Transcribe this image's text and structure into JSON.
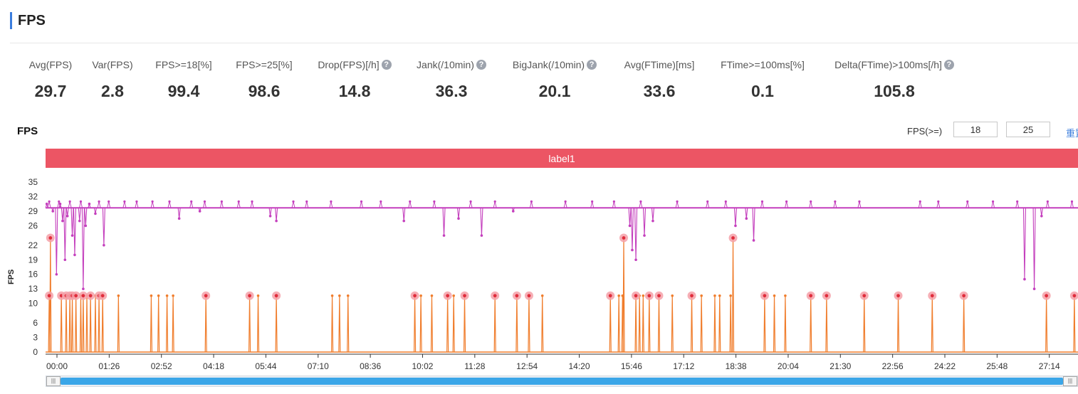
{
  "header": {
    "title": "FPS"
  },
  "metrics": [
    {
      "label": "Avg(FPS)",
      "value": "29.7",
      "help": false
    },
    {
      "label": "Var(FPS)",
      "value": "2.8",
      "help": false
    },
    {
      "label": "FPS>=18[%]",
      "value": "99.4",
      "help": false
    },
    {
      "label": "FPS>=25[%]",
      "value": "98.6",
      "help": false
    },
    {
      "label": "Drop(FPS)[/h]",
      "value": "14.8",
      "help": true
    },
    {
      "label": "Jank(/10min)",
      "value": "36.3",
      "help": true
    },
    {
      "label": "BigJank(/10min)",
      "value": "20.1",
      "help": true
    },
    {
      "label": "Avg(FTime)[ms]",
      "value": "33.6",
      "help": false
    },
    {
      "label": "FTime>=100ms[%]",
      "value": "0.1",
      "help": false
    },
    {
      "label": "Delta(FTime)>100ms[/h]",
      "value": "105.8",
      "help": true
    }
  ],
  "chart_panel": {
    "title": "FPS",
    "threshold_label": "FPS(>=)",
    "threshold_low": "18",
    "threshold_high": "25",
    "reset_label": "重置",
    "band_label": "label1"
  },
  "chart_data": {
    "type": "line",
    "title": "FPS",
    "xlabel": "",
    "ylabel": "FPS",
    "ylim": [
      0,
      35
    ],
    "y_ticks": [
      0,
      3,
      6,
      10,
      13,
      16,
      19,
      22,
      26,
      29,
      32,
      35
    ],
    "x_ticks": [
      "00:00",
      "01:26",
      "02:52",
      "04:18",
      "05:44",
      "07:10",
      "08:36",
      "10:02",
      "11:28",
      "12:54",
      "14:20",
      "15:46",
      "17:12",
      "18:38",
      "20:04",
      "21:30",
      "22:56",
      "24:22",
      "25:48",
      "27:14"
    ],
    "x_range_seconds": [
      0,
      1700
    ],
    "series": [
      {
        "color": "#c43fbd",
        "baseline": 29.7,
        "dips": [
          [
            2,
            30.5
          ],
          [
            12,
            29.0
          ],
          [
            18,
            16.0
          ],
          [
            24,
            30.5
          ],
          [
            28,
            27.0
          ],
          [
            32,
            19.0
          ],
          [
            36,
            28.0
          ],
          [
            44,
            24.0
          ],
          [
            48,
            20.0
          ],
          [
            56,
            27.0
          ],
          [
            62,
            13.0
          ],
          [
            66,
            26.0
          ],
          [
            72,
            30.5
          ],
          [
            82,
            28.5
          ],
          [
            96,
            22.0
          ],
          [
            220,
            27.5
          ],
          [
            254,
            29.0
          ],
          [
            370,
            28.0
          ],
          [
            380,
            27.0
          ],
          [
            590,
            27.0
          ],
          [
            656,
            24.0
          ],
          [
            680,
            27.5
          ],
          [
            718,
            24.0
          ],
          [
            770,
            29.0
          ],
          [
            962,
            26.0
          ],
          [
            966,
            21.0
          ],
          [
            972,
            19.0
          ],
          [
            986,
            24.0
          ],
          [
            1000,
            27.0
          ],
          [
            1136,
            26.0
          ],
          [
            1154,
            27.5
          ],
          [
            1166,
            23.0
          ],
          [
            1612,
            15.0
          ],
          [
            1628,
            13.0
          ],
          [
            1640,
            28.0
          ]
        ],
        "spikes": [
          6,
          22,
          40,
          58,
          88,
          104,
          130,
          150,
          176,
          204,
          240,
          262,
          290,
          318,
          340,
          408,
          430,
          470,
          520,
          552,
          600,
          640,
          700,
          740,
          800,
          856,
          900,
          936,
          980,
          1040,
          1090,
          1120,
          1180,
          1220,
          1260,
          1300,
          1340,
          1440,
          1470,
          1518,
          1560,
          1600,
          1650,
          1690
        ]
      },
      {
        "color": "#f07d2c",
        "baseline": 0,
        "events": [
          [
            6,
            11.6
          ],
          [
            8,
            23.5
          ],
          [
            26,
            11.6
          ],
          [
            34,
            11.6
          ],
          [
            40,
            11.6
          ],
          [
            44,
            11.6
          ],
          [
            50,
            11.6
          ],
          [
            58,
            11.6
          ],
          [
            62,
            11.6
          ],
          [
            68,
            11.6
          ],
          [
            74,
            11.6
          ],
          [
            82,
            11.6
          ],
          [
            88,
            11.6
          ],
          [
            94,
            11.6
          ],
          [
            120,
            11.6
          ],
          [
            174,
            11.6
          ],
          [
            186,
            11.6
          ],
          [
            200,
            11.6
          ],
          [
            210,
            11.6
          ],
          [
            264,
            11.6
          ],
          [
            336,
            11.6
          ],
          [
            350,
            11.6
          ],
          [
            380,
            11.6
          ],
          [
            472,
            11.6
          ],
          [
            484,
            11.6
          ],
          [
            498,
            11.6
          ],
          [
            608,
            11.6
          ],
          [
            618,
            11.6
          ],
          [
            636,
            11.6
          ],
          [
            662,
            11.6
          ],
          [
            672,
            11.6
          ],
          [
            690,
            11.6
          ],
          [
            740,
            11.6
          ],
          [
            776,
            11.6
          ],
          [
            796,
            11.6
          ],
          [
            818,
            11.6
          ],
          [
            930,
            11.6
          ],
          [
            944,
            11.6
          ],
          [
            950,
            11.6
          ],
          [
            952,
            23.5
          ],
          [
            972,
            11.6
          ],
          [
            978,
            11.6
          ],
          [
            984,
            11.6
          ],
          [
            994,
            11.6
          ],
          [
            1010,
            11.6
          ],
          [
            1032,
            11.6
          ],
          [
            1064,
            11.6
          ],
          [
            1080,
            11.6
          ],
          [
            1102,
            11.6
          ],
          [
            1110,
            11.6
          ],
          [
            1128,
            11.6
          ],
          [
            1132,
            23.5
          ],
          [
            1184,
            11.6
          ],
          [
            1200,
            11.6
          ],
          [
            1218,
            11.6
          ],
          [
            1260,
            11.6
          ],
          [
            1286,
            11.6
          ],
          [
            1348,
            11.6
          ],
          [
            1404,
            11.6
          ],
          [
            1460,
            11.6
          ],
          [
            1512,
            11.6
          ],
          [
            1648,
            11.6
          ],
          [
            1694,
            11.6
          ]
        ],
        "highlighted": [
          [
            6,
            11.6
          ],
          [
            8,
            23.5
          ],
          [
            26,
            11.6
          ],
          [
            34,
            11.6
          ],
          [
            40,
            11.6
          ],
          [
            44,
            11.6
          ],
          [
            50,
            11.6
          ],
          [
            62,
            11.6
          ],
          [
            74,
            11.6
          ],
          [
            88,
            11.6
          ],
          [
            94,
            11.6
          ],
          [
            264,
            11.6
          ],
          [
            336,
            11.6
          ],
          [
            380,
            11.6
          ],
          [
            608,
            11.6
          ],
          [
            662,
            11.6
          ],
          [
            690,
            11.6
          ],
          [
            740,
            11.6
          ],
          [
            776,
            11.6
          ],
          [
            796,
            11.6
          ],
          [
            930,
            11.6
          ],
          [
            952,
            23.5
          ],
          [
            972,
            11.6
          ],
          [
            994,
            11.6
          ],
          [
            1010,
            11.6
          ],
          [
            1064,
            11.6
          ],
          [
            1132,
            23.5
          ],
          [
            1184,
            11.6
          ],
          [
            1260,
            11.6
          ],
          [
            1286,
            11.6
          ],
          [
            1348,
            11.6
          ],
          [
            1404,
            11.6
          ],
          [
            1460,
            11.6
          ],
          [
            1512,
            11.6
          ],
          [
            1648,
            11.6
          ],
          [
            1694,
            11.6
          ]
        ]
      }
    ],
    "grid": false,
    "legend": "none"
  }
}
